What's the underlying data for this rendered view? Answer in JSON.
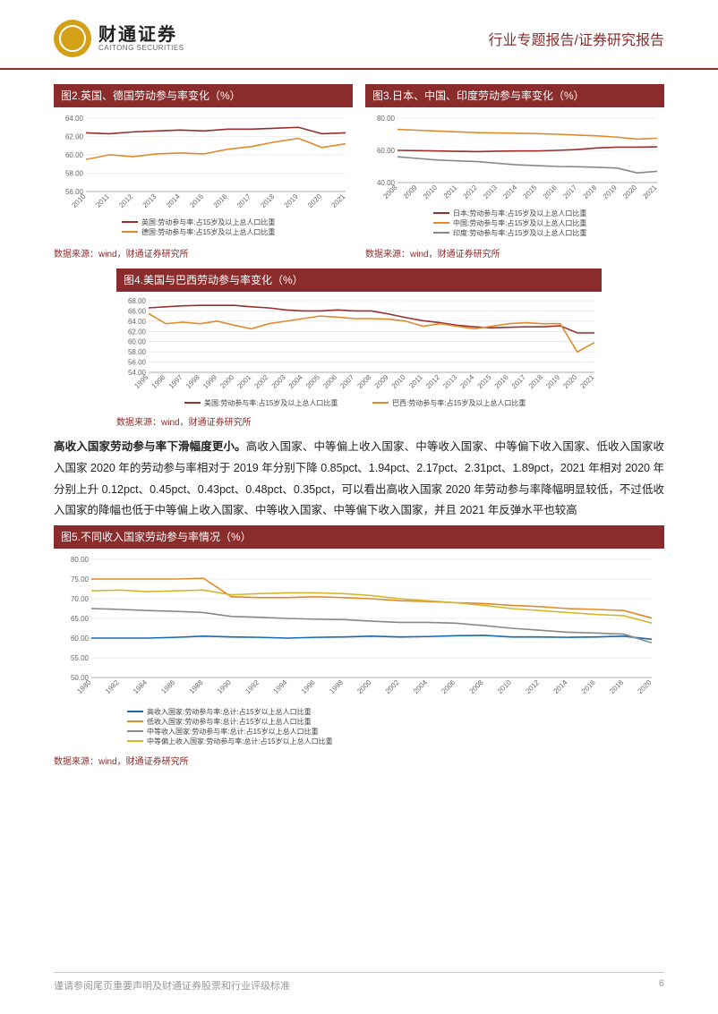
{
  "header": {
    "logo_cn": "财通证券",
    "logo_en": "CAITONG SECURITIES",
    "report_type": "行业专题报告/证券研究报告"
  },
  "chart2": {
    "title": "图2.英国、德国劳动参与率变化（%）",
    "type": "line",
    "years": [
      "2010",
      "2011",
      "2012",
      "2013",
      "2014",
      "2015",
      "2016",
      "2017",
      "2018",
      "2019",
      "2020",
      "2021"
    ],
    "series": [
      {
        "name": "英国:劳动参与率:占15岁及以上总人口比重",
        "color": "#9b2e2e",
        "values": [
          62.4,
          62.3,
          62.5,
          62.6,
          62.7,
          62.6,
          62.8,
          62.8,
          62.9,
          63.0,
          62.3,
          62.4
        ]
      },
      {
        "name": "德国:劳动参与率:占15岁及以上总人口比重",
        "color": "#e08a2c",
        "values": [
          59.5,
          60.0,
          59.8,
          60.1,
          60.2,
          60.1,
          60.6,
          60.9,
          61.4,
          61.8,
          60.8,
          61.2
        ]
      }
    ],
    "ylim": [
      56,
      64
    ],
    "ytick_step": 2,
    "background": "#ffffff",
    "grid": "#dddddd",
    "source": "数据来源：wind，财通证券研究所"
  },
  "chart3": {
    "title": "图3.日本、中国、印度劳动参与率变化（%）",
    "type": "line",
    "years": [
      "2008",
      "2009",
      "2010",
      "2011",
      "2012",
      "2013",
      "2014",
      "2015",
      "2016",
      "2017",
      "2018",
      "2019",
      "2020",
      "2021"
    ],
    "series": [
      {
        "name": "日本:劳动参与率:占15岁及以上总人口比重",
        "color": "#9b2e2e",
        "values": [
          60,
          59.8,
          59.6,
          59.4,
          59.2,
          59.5,
          59.6,
          59.6,
          60,
          60.5,
          61.5,
          62,
          62,
          62.2
        ]
      },
      {
        "name": "中国:劳动参与率:占15岁及以上总人口比重",
        "color": "#e08a2c",
        "values": [
          73,
          72.5,
          72,
          71.5,
          71,
          70.8,
          70.6,
          70.4,
          70,
          69.5,
          69,
          68.2,
          67,
          67.5
        ]
      },
      {
        "name": "印度:劳动参与率:占15岁及以上总人口比重",
        "color": "#888888",
        "values": [
          56,
          55,
          54,
          53.5,
          53,
          52,
          51,
          50.5,
          50,
          49.8,
          49.5,
          49,
          46,
          47
        ]
      }
    ],
    "ylim": [
      40,
      80
    ],
    "ytick_step": 20,
    "background": "#ffffff",
    "grid": "#dddddd",
    "source": "数据来源：wind，财通证券研究所"
  },
  "chart4": {
    "title": "图4.美国与巴西劳动参与率变化（%）",
    "type": "line",
    "years": [
      "1995",
      "1996",
      "1997",
      "1998",
      "1999",
      "2000",
      "2001",
      "2002",
      "2003",
      "2004",
      "2005",
      "2006",
      "2007",
      "2008",
      "2009",
      "2010",
      "2011",
      "2012",
      "2013",
      "2014",
      "2015",
      "2016",
      "2017",
      "2018",
      "2019",
      "2020",
      "2021"
    ],
    "series": [
      {
        "name": "美国:劳动参与率:占15岁及以上总人口比重",
        "color": "#9b2e2e",
        "values": [
          66.6,
          66.8,
          67,
          67.1,
          67.1,
          67.1,
          66.8,
          66.6,
          66.2,
          66,
          66,
          66.2,
          66,
          66,
          65.4,
          64.7,
          64.1,
          63.7,
          63.2,
          62.9,
          62.7,
          62.8,
          62.9,
          62.9,
          63.1,
          61.7,
          61.7
        ]
      },
      {
        "name": "巴西:劳动参与率:占15岁及以上总人口比重",
        "color": "#e08a2c",
        "values": [
          65.5,
          63.5,
          63.8,
          63.5,
          64,
          63.2,
          62.5,
          63.5,
          64,
          64.5,
          65,
          64.8,
          64.5,
          64.5,
          64.4,
          64,
          63,
          63.5,
          63,
          62.5,
          63,
          63.5,
          63.7,
          63.5,
          63.5,
          58,
          59.8
        ]
      }
    ],
    "ylim": [
      54,
      68
    ],
    "ytick_step": 2,
    "background": "#ffffff",
    "grid": "#dddddd",
    "source": "数据来源：wind，财通证券研究所"
  },
  "paragraph": {
    "bold": "高收入国家劳动参与率下滑幅度更小。",
    "rest": "高收入国家、中等偏上收入国家、中等收入国家、中等偏下收入国家、低收入国家收入国家 2020 年的劳动参与率相对于 2019 年分别下降 0.85pct、1.94pct、2.17pct、2.31pct、1.89pct，2021 年相对 2020 年分别上升 0.12pct、0.45pct、0.43pct、0.48pct、0.35pct，可以看出高收入国家 2020 年劳动参与率降幅明显较低，不过低收入国家的降幅也低于中等偏上收入国家、中等收入国家、中等偏下收入国家，并且 2021 年反弹水平也较高"
  },
  "chart5": {
    "title": "图5.不同收入国家劳动参与率情况（%）",
    "type": "line",
    "years": [
      "1980",
      "1982",
      "1984",
      "1986",
      "1988",
      "1990",
      "1992",
      "1994",
      "1996",
      "1998",
      "2000",
      "2002",
      "2004",
      "2006",
      "2008",
      "2010",
      "2012",
      "2014",
      "2016",
      "2018",
      "2020"
    ],
    "series": [
      {
        "name": "高收入国家:劳动参与率:总计:占15岁以上总人口比重",
        "color": "#156ab0",
        "values": [
          60,
          60,
          60,
          60.2,
          60.5,
          60.3,
          60.2,
          60,
          60.2,
          60.3,
          60.5,
          60.3,
          60.4,
          60.6,
          60.7,
          60.3,
          60.3,
          60.2,
          60.3,
          60.5,
          59.7
        ]
      },
      {
        "name": "低收入国家:劳动参与率:总计:占15岁以上总人口比重",
        "color": "#e08a2c",
        "values": [
          75,
          75,
          75,
          75,
          75.2,
          70.5,
          70.3,
          70.3,
          70.5,
          70.3,
          70,
          69.5,
          69.3,
          69,
          68.8,
          68.3,
          68,
          67.5,
          67.3,
          67,
          65.1
        ]
      },
      {
        "name": "中等收入国家:劳动参与率:总计:占15岁以上总人口比重",
        "color": "#888888",
        "values": [
          67.5,
          67.3,
          67,
          66.8,
          66.5,
          65.5,
          65.3,
          65,
          64.8,
          64.7,
          64.3,
          64,
          64,
          63.8,
          63.2,
          62.5,
          62,
          61.5,
          61.3,
          61,
          58.8
        ]
      },
      {
        "name": "中等偏上收入国家:劳动参与率:总计:占15岁以上总人口比重",
        "color": "#d4b82c",
        "values": [
          72,
          72.2,
          71.8,
          72,
          72.2,
          71,
          71.3,
          71.5,
          71.5,
          71.3,
          70.8,
          70,
          69.5,
          69,
          68.3,
          67.5,
          67,
          66.5,
          66,
          65.7,
          63.8
        ]
      }
    ],
    "ylim": [
      50,
      80
    ],
    "ytick_step": 5,
    "background": "#ffffff",
    "grid": "#dddddd",
    "source": "数据来源：wind，财通证券研究所"
  },
  "footer": {
    "disclaimer": "谨请参阅尾页重要声明及财通证券股票和行业评级标准",
    "page": "6"
  }
}
